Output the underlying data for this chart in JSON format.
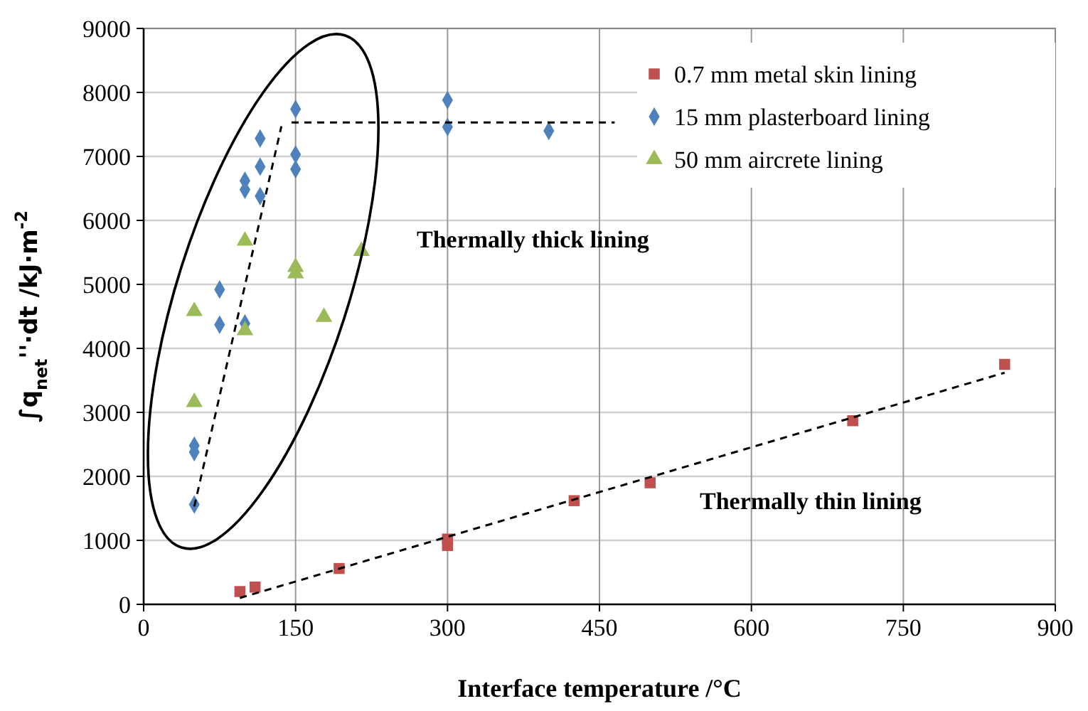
{
  "chart_data": {
    "type": "scatter",
    "xlabel": "Interface temperature /°C",
    "ylabel": "∫q$_{net}$''·dt /kJ·m$^{-2}$",
    "xlim": [
      0,
      900
    ],
    "xticks": [
      0,
      150,
      300,
      450,
      600,
      750,
      900
    ],
    "ylim": [
      0,
      9000
    ],
    "yticks": [
      0,
      1000,
      2000,
      3000,
      4000,
      5000,
      6000,
      7000,
      8000,
      9000
    ],
    "grid": true,
    "legend": "top right",
    "series": [
      {
        "name": "0.7 mm metal skin lining",
        "color": "#c0504d",
        "marker": "square",
        "x": [
          95,
          110,
          193,
          300,
          300,
          425,
          500,
          700,
          850
        ],
        "values": [
          200,
          270,
          560,
          920,
          1020,
          1620,
          1900,
          2870,
          3750
        ]
      },
      {
        "name": "15 mm plasterboard lining",
        "color": "#4f81bd",
        "marker": "diamond",
        "x": [
          50,
          50,
          50,
          75,
          75,
          100,
          100,
          100,
          115,
          115,
          115,
          150,
          150,
          150,
          300,
          300,
          400
        ],
        "values": [
          1560,
          2380,
          2480,
          4370,
          4920,
          4390,
          6480,
          6620,
          6380,
          6840,
          7280,
          6800,
          7030,
          7740,
          7880,
          7460,
          7400
        ]
      },
      {
        "name": "50 mm aircrete lining",
        "color": "#9bbb59",
        "marker": "triangle",
        "x": [
          50,
          50,
          100,
          100,
          150,
          150,
          178,
          215
        ],
        "values": [
          3160,
          4580,
          4280,
          5680,
          5170,
          5270,
          4490,
          5520
        ]
      },
      {
        "type": "line",
        "color": "#000000",
        "marker": "none",
        "line_style": "dashed",
        "x": [
          50,
          136
        ],
        "values": [
          1530,
          7470
        ]
      },
      {
        "type": "line",
        "color": "#000000",
        "marker": "none",
        "line_style": "dashed",
        "x": [
          146,
          465
        ],
        "values": [
          7530,
          7530
        ]
      },
      {
        "type": "line",
        "color": "#000000",
        "marker": "none",
        "line_style": "dashed",
        "x": [
          95,
          850
        ],
        "values": [
          100,
          3620
        ]
      }
    ],
    "annotations": [
      "Thermally thick lining",
      "Thermally thin lining"
    ]
  }
}
